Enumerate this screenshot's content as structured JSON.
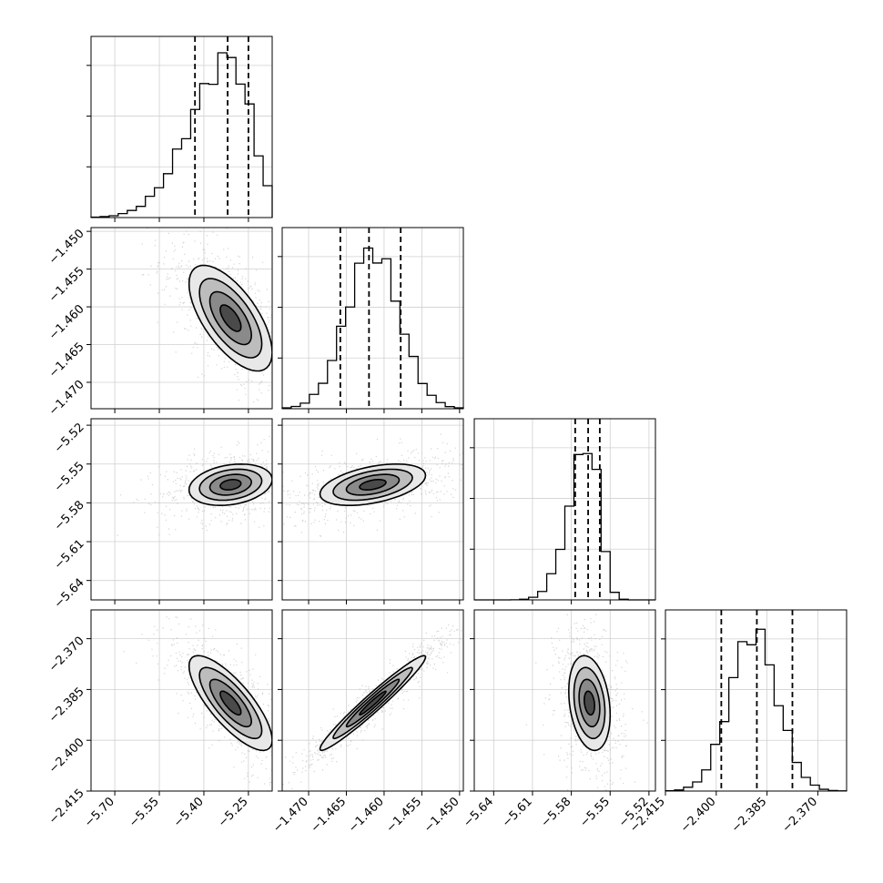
{
  "chart_data": {
    "type": "corner",
    "grid": true,
    "parameters": [
      {
        "range": [
          -5.78,
          -5.17
        ],
        "ticks": [
          {
            "v": -5.7,
            "label": "−5.70"
          },
          {
            "v": -5.55,
            "label": "−5.55"
          },
          {
            "v": -5.4,
            "label": "−5.40"
          },
          {
            "v": -5.25,
            "label": "−5.25"
          }
        ],
        "quantiles": [
          -5.43,
          -5.32,
          -5.25
        ],
        "peak": -5.31,
        "sigma": 0.07,
        "skew": "left"
      },
      {
        "range": [
          -1.4735,
          -1.4495
        ],
        "ticks": [
          {
            "v": -1.47,
            "label": "−1.470"
          },
          {
            "v": -1.465,
            "label": "−1.465"
          },
          {
            "v": -1.46,
            "label": "−1.460"
          },
          {
            "v": -1.455,
            "label": "−1.455"
          },
          {
            "v": -1.45,
            "label": "−1.450"
          }
        ],
        "quantiles": [
          -1.4658,
          -1.462,
          -1.4578
        ],
        "peak": -1.4615,
        "sigma": 0.0035,
        "skew": "none"
      },
      {
        "range": [
          -5.655,
          -5.515
        ],
        "ticks": [
          {
            "v": -5.64,
            "label": "−5.64"
          },
          {
            "v": -5.61,
            "label": "−5.61"
          },
          {
            "v": -5.58,
            "label": "−5.58"
          },
          {
            "v": -5.55,
            "label": "−5.55"
          },
          {
            "v": -5.52,
            "label": "−5.52"
          }
        ],
        "quantiles": [
          -5.577,
          -5.567,
          -5.558
        ],
        "peak": -5.566,
        "sigma": 0.008,
        "skew": "left"
      },
      {
        "range": [
          -2.415,
          -2.3615
        ],
        "ticks": [
          {
            "v": -2.415,
            "label": "−2.415"
          },
          {
            "v": -2.4,
            "label": "−2.400"
          },
          {
            "v": -2.385,
            "label": "−2.385"
          },
          {
            "v": -2.37,
            "label": "−2.370"
          }
        ],
        "quantiles": [
          -2.3985,
          -2.388,
          -2.3775
        ],
        "peak": -2.389,
        "sigma": 0.007,
        "skew": "none"
      }
    ],
    "correlations": {
      "1-0": -0.65,
      "2-0": 0.25,
      "2-1": 0.45,
      "3-0": -0.78,
      "3-1": 0.97,
      "3-2": -0.25
    },
    "contour_levels": [
      "0.5σ",
      "1σ",
      "1.5σ",
      "2σ"
    ],
    "quantile_line_style": "dashed"
  }
}
